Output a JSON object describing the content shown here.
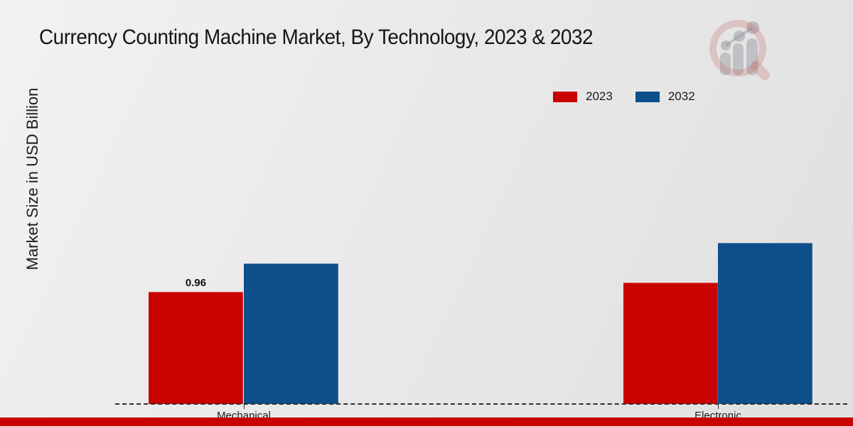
{
  "title": "Currency Counting Machine Market, By Technology, 2023 & 2032",
  "y_axis_label": "Market Size in USD Billion",
  "legend": {
    "items": [
      {
        "label": "2023",
        "color": "#c90101"
      },
      {
        "label": "2032",
        "color": "#0d4f8b"
      }
    ],
    "position": "top-right"
  },
  "chart_data": {
    "type": "bar",
    "title": "Currency Counting Machine Market, By Technology, 2023 & 2032",
    "xlabel": "",
    "ylabel": "Market Size in USD Billion",
    "categories": [
      "Mechanical",
      "Electronic"
    ],
    "series": [
      {
        "name": "2023",
        "color": "#c90101",
        "values": [
          0.96,
          1.04
        ]
      },
      {
        "name": "2032",
        "color": "#0d4f8b",
        "values": [
          1.2,
          1.38
        ]
      }
    ],
    "annotations": [
      {
        "series": "2023",
        "category": "Mechanical",
        "text": "0.96"
      }
    ],
    "ylim": [
      0,
      3.3
    ],
    "grid": false,
    "legend_position": "top-right",
    "x_axis_style": "dashed-baseline",
    "y_ticks_visible": false
  },
  "watermark": {
    "icon": "magnifier-barchart-logo",
    "circle_color": "#c56a6a",
    "bars_color": "#8d9096"
  },
  "footer": {
    "accent_color": "#c90101"
  }
}
